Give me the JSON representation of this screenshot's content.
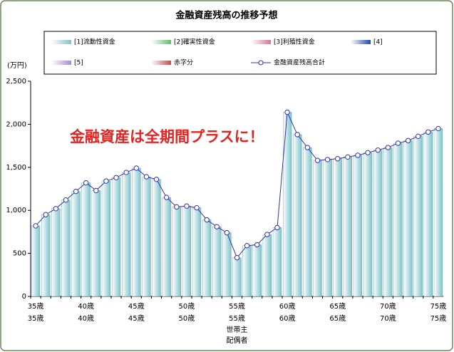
{
  "chart_data": {
    "type": "bar",
    "title": "金融資産残高の推移予想",
    "y_unit": "(万円)",
    "annotation": "金融資産は全期間プラスに！",
    "categories": [
      "35歳",
      null,
      null,
      null,
      null,
      "40歳",
      null,
      null,
      null,
      null,
      "45歳",
      null,
      null,
      null,
      null,
      "50歳",
      null,
      null,
      null,
      null,
      "55歳",
      null,
      null,
      null,
      null,
      "60歳",
      null,
      null,
      null,
      null,
      "65歳",
      null,
      null,
      null,
      null,
      "70歳",
      null,
      null,
      null,
      null,
      "75歳"
    ],
    "categories2": [
      "35歳",
      null,
      null,
      null,
      null,
      "40歳",
      null,
      null,
      null,
      null,
      "45歳",
      null,
      null,
      null,
      null,
      "50歳",
      null,
      null,
      null,
      null,
      "55歳",
      null,
      null,
      null,
      null,
      "60歳",
      null,
      null,
      null,
      null,
      "65歳",
      null,
      null,
      null,
      null,
      "70歳",
      null,
      null,
      null,
      null,
      "75歳"
    ],
    "row_names": [
      "世帯主",
      "配偶者"
    ],
    "ylim": [
      0,
      2500
    ],
    "yticks": [
      0,
      500,
      {
        "value": 1000,
        "label": "1,000"
      },
      {
        "value": 1500,
        "label": "1,500"
      },
      {
        "value": 2000,
        "label": "2,000"
      },
      {
        "value": 2500,
        "label": "2,500"
      }
    ],
    "series": [
      {
        "name": "[1]流動性資金",
        "color": "#7fc4cc",
        "kind": "bar",
        "values": [
          820,
          950,
          1020,
          1120,
          1220,
          1320,
          1230,
          1340,
          1380,
          1440,
          1490,
          1390,
          1360,
          1150,
          1040,
          1050,
          1030,
          890,
          810,
          740,
          450,
          590,
          600,
          720,
          800,
          2140,
          1880,
          1730,
          1580,
          1590,
          1600,
          1620,
          1640,
          1670,
          1700,
          1730,
          1780,
          1810,
          1860,
          1910,
          1950
        ]
      },
      {
        "name": "[2]確実性資金",
        "color": "#5fbf6f",
        "kind": "bar"
      },
      {
        "name": "[3]利殖性資金",
        "color": "#d9739a",
        "kind": "bar"
      },
      {
        "name": "[4]",
        "color": "#2347b8",
        "kind": "bar"
      },
      {
        "name": "[5]",
        "color": "#a78ad8",
        "kind": "bar"
      },
      {
        "name": "赤字分",
        "color": "#c84a4a",
        "kind": "bar"
      },
      {
        "name": "金融資産残高合計",
        "color": "#3333aa",
        "kind": "line",
        "values": [
          820,
          950,
          1020,
          1120,
          1220,
          1320,
          1230,
          1340,
          1380,
          1440,
          1490,
          1390,
          1360,
          1150,
          1040,
          1050,
          1030,
          890,
          810,
          740,
          450,
          590,
          600,
          720,
          800,
          2140,
          1880,
          1730,
          1580,
          1590,
          1600,
          1620,
          1640,
          1670,
          1700,
          1730,
          1780,
          1810,
          1860,
          1910,
          1950
        ]
      }
    ]
  }
}
